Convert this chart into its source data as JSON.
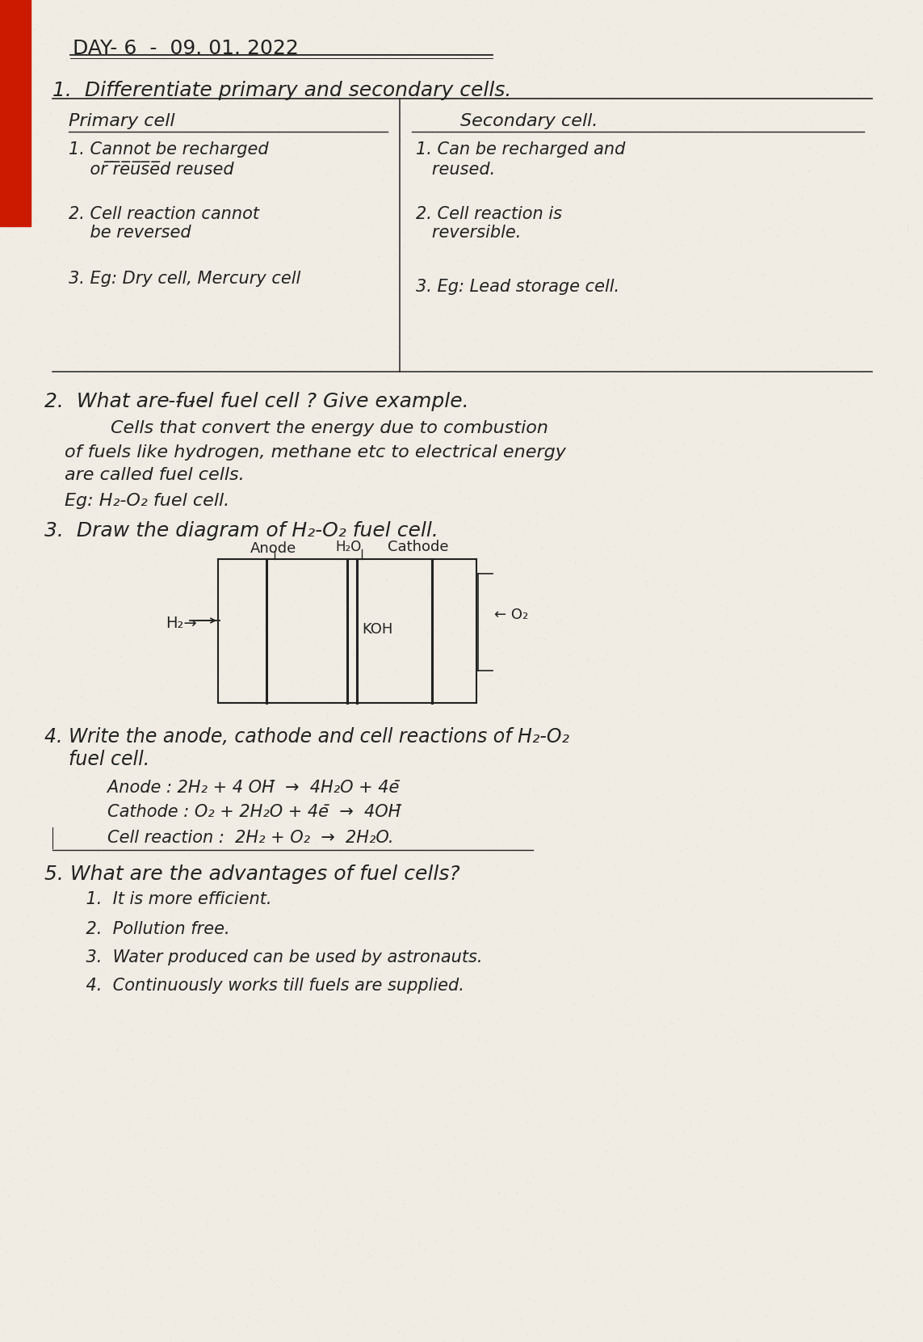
{
  "bg_color": "#ece8e0",
  "paper_color": "#f0ece4",
  "text_color": "#222222",
  "red_color": "#cc1a00",
  "title": "DAY- 6  -  09. 01. 2022",
  "table_header_left": "Primary cell",
  "table_header_right": "Secondary cell.",
  "q2_title": "2.  What are ̵f̵u̵e̵l fuel cell ? Give example.",
  "q2_body_1": "        Cells that convert the energy due to combustion",
  "q2_body_2": "of fuels like hydrogen, methane etc to electrical energy",
  "q2_body_3": "are called fuel cells.",
  "q2_body_4": "Eg: H₂-O₂ fuel cell.",
  "q3_title": "3.  Draw the diagram of H₂-O₂ fuel cell.",
  "q4_title_1": "4. Write the anode, cathode and cell reactions of H₂-O₂",
  "q4_title_2": "    fuel cell.",
  "q4_anode": "        Anode : 2H₂ + 4 OH̄  →  4H₂O + 4ē",
  "q4_cathode": "        Cathode : O₂ + 2H₂O + 4ē  →  4OH̄",
  "q4_cell": "        Cell reaction :  2H₂ + O₂  →  2H₂O.",
  "q5_title": "5. What are the advantages of fuel cells?",
  "q5_1": "    1.  It is more efficient.",
  "q5_2": "    2.  Pollution free.",
  "q5_3": "    3.  Water produced can be used by astronauts.",
  "q5_4": "    4.  Continuously works till fuels are supplied."
}
